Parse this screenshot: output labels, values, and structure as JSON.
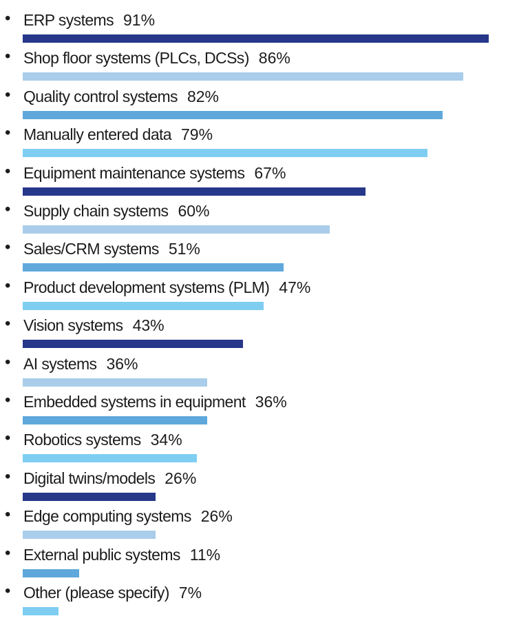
{
  "chart_data": {
    "type": "bar",
    "orientation": "horizontal",
    "title": "",
    "xlabel": "",
    "ylabel": "",
    "xlim": [
      0,
      91
    ],
    "unit": "%",
    "categories": [
      "ERP systems",
      "Shop floor systems (PLCs, DCSs)",
      "Quality control systems",
      "Manually entered data",
      "Equipment maintenance systems",
      "Supply chain systems",
      "Sales/CRM systems",
      "Product development systems (PLM)",
      "Vision systems",
      "AI systems",
      "Embedded systems in equipment",
      "Robotics systems",
      "Digital twins/models",
      "Edge computing systems",
      "External public systems",
      "Other (please specify)"
    ],
    "values": [
      91,
      86,
      82,
      79,
      67,
      60,
      51,
      47,
      43,
      36,
      36,
      34,
      26,
      26,
      11,
      7
    ],
    "value_labels": [
      "91%",
      "86%",
      "82%",
      "79%",
      "67%",
      "60%",
      "51%",
      "47%",
      "43%",
      "36%",
      "36%",
      "34%",
      "26%",
      "26%",
      "11%",
      "7%"
    ],
    "bar_colors": [
      "#27378a",
      "#a9cdea",
      "#5ea8dc",
      "#7fcef2"
    ],
    "bullet": "•"
  }
}
